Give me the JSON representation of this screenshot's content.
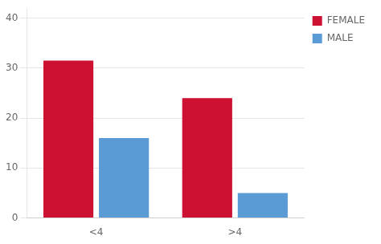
{
  "chart_data": {
    "type": "bar",
    "categories": [
      "<4",
      ">4"
    ],
    "series": [
      {
        "name": "FEMALE",
        "color": "#cc1133",
        "values": [
          31.5,
          24.0
        ]
      },
      {
        "name": "MALE",
        "color": "#5b9bd5",
        "values": [
          16.0,
          5.0
        ]
      }
    ],
    "ylim": [
      0,
      42
    ],
    "yticks": [
      0,
      10,
      20,
      30,
      40
    ],
    "grid": true,
    "legend": "upper right"
  }
}
